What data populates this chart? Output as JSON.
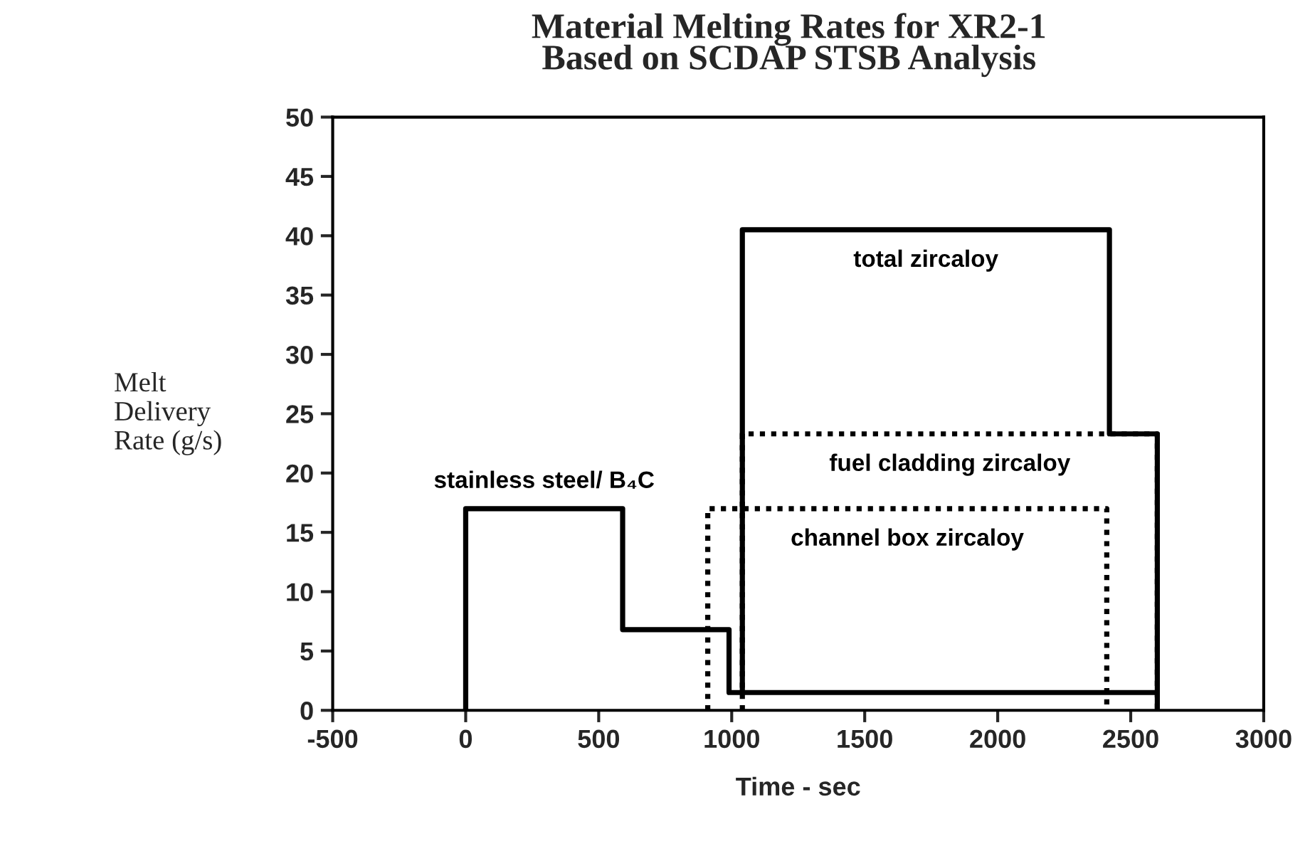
{
  "chart_data": {
    "type": "line",
    "title": "Material Melting Rates for XR2-1\nBased on SCDAP STSB Analysis",
    "xlabel": "Time - sec",
    "ylabel": "Melt\nDelivery\nRate (g/s)",
    "series": [
      {
        "name": "stainless steel/ B₄C",
        "color": "#000000",
        "line_style": "solid",
        "x": [
          0,
          0,
          590,
          590,
          990,
          990,
          2600
        ],
        "values": [
          0,
          17,
          17,
          6.8,
          6.8,
          1.5,
          1.5
        ]
      },
      {
        "name": "total zircaloy",
        "color": "#000000",
        "line_style": "solid",
        "x": [
          1040,
          1040,
          2420,
          2420,
          2600,
          2600
        ],
        "values": [
          1.5,
          40.5,
          40.5,
          23.3,
          23.3,
          0
        ]
      },
      {
        "name": "fuel cladding zircaloy",
        "color": "#000000",
        "line_style": "dotted",
        "x": [
          1040,
          1040,
          2600,
          2600
        ],
        "values": [
          0,
          23.3,
          23.3,
          0
        ]
      },
      {
        "name": "channel box zircaloy",
        "color": "#000000",
        "line_style": "dotted",
        "x": [
          910,
          910,
          2410,
          2410
        ],
        "values": [
          0,
          17,
          17,
          0
        ]
      }
    ],
    "xlim": [
      -500,
      3000
    ],
    "xticks": [
      -500,
      0,
      500,
      1000,
      1500,
      2000,
      2500,
      3000
    ],
    "ylim": [
      0,
      50
    ],
    "yticks": [
      0,
      5,
      10,
      15,
      20,
      25,
      30,
      35,
      40,
      45,
      50
    ],
    "grid": false,
    "legend": false,
    "marker": "none"
  }
}
